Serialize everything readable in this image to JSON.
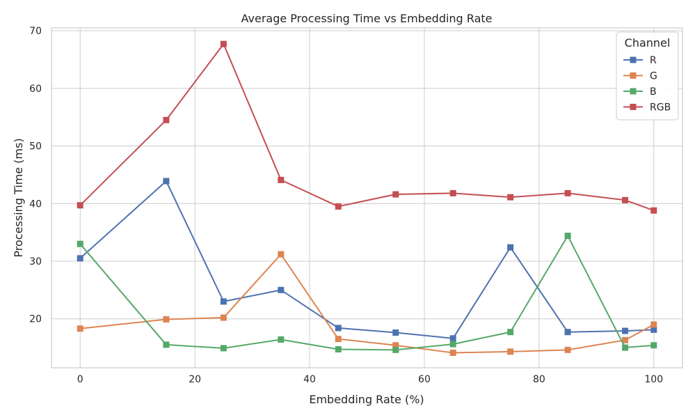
{
  "chart_data": {
    "type": "line",
    "title": "Average Processing Time vs Embedding Rate",
    "xlabel": "Embedding Rate (%)",
    "ylabel": "Processing Time (ms)",
    "xlim": [
      -5,
      105
    ],
    "ylim": [
      11.5,
      70.5
    ],
    "x_ticks": [
      0,
      20,
      40,
      60,
      80,
      100
    ],
    "y_ticks": [
      20,
      30,
      40,
      50,
      60,
      70
    ],
    "grid": true,
    "legend": {
      "title": "Channel",
      "position": "top-right"
    },
    "x": [
      0,
      15,
      25,
      35,
      45,
      55,
      65,
      75,
      85,
      95,
      100
    ],
    "series": [
      {
        "name": "R",
        "color": "#4c72b0",
        "marker": "square",
        "values": [
          30.5,
          43.9,
          23.0,
          25.0,
          18.4,
          17.6,
          16.6,
          32.4,
          17.7,
          17.9,
          18.1
        ]
      },
      {
        "name": "G",
        "color": "#dd8452",
        "marker": "square",
        "values": [
          18.3,
          19.9,
          20.2,
          31.2,
          16.5,
          15.4,
          14.1,
          14.3,
          14.6,
          16.3,
          19.0
        ]
      },
      {
        "name": "B",
        "color": "#55a868",
        "marker": "square",
        "values": [
          33.0,
          15.5,
          14.9,
          16.4,
          14.7,
          14.6,
          15.6,
          17.7,
          34.4,
          15.0,
          15.4
        ]
      },
      {
        "name": "RGB",
        "color": "#c44e52",
        "marker": "square",
        "values": [
          39.7,
          54.5,
          67.7,
          44.1,
          39.5,
          41.6,
          41.8,
          41.1,
          41.8,
          40.6,
          38.8
        ]
      }
    ]
  }
}
